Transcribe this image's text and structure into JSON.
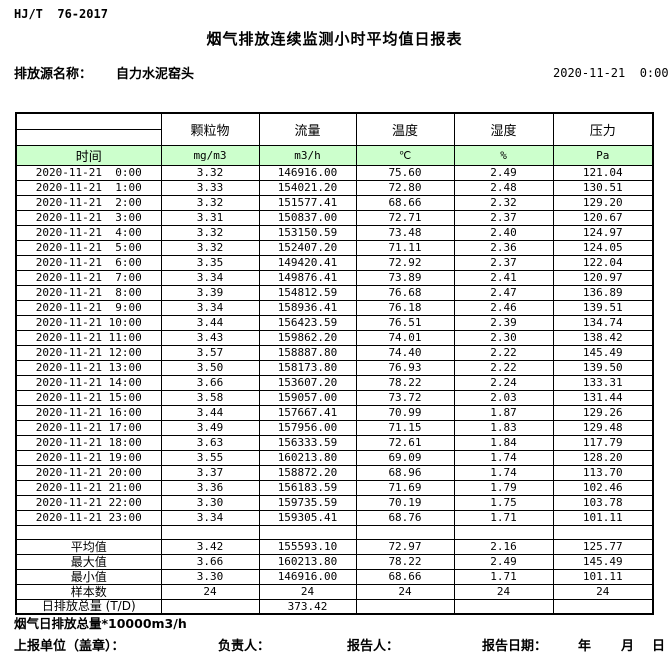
{
  "header": {
    "standard": "HJ/T  76-2017",
    "title": "烟气排放连续监测小时平均值日报表",
    "source_label": "排放源名称：",
    "source_name": "自力水泥窑头",
    "datetime": "2020-11-21  0:00"
  },
  "table": {
    "time_header": "时间",
    "columns": [
      "颗粒物",
      "流量",
      "温度",
      "湿度",
      "压力"
    ],
    "units": [
      "mg/m3",
      "m3/h",
      "℃",
      "%",
      "Pa"
    ],
    "rows": [
      {
        "time": "2020-11-21  0:00",
        "values": [
          "3.32",
          "146916.00",
          "75.60",
          "2.49",
          "121.04"
        ]
      },
      {
        "time": "2020-11-21  1:00",
        "values": [
          "3.33",
          "154021.20",
          "72.80",
          "2.48",
          "130.51"
        ]
      },
      {
        "time": "2020-11-21  2:00",
        "values": [
          "3.32",
          "151577.41",
          "68.66",
          "2.32",
          "129.20"
        ]
      },
      {
        "time": "2020-11-21  3:00",
        "values": [
          "3.31",
          "150837.00",
          "72.71",
          "2.37",
          "120.67"
        ]
      },
      {
        "time": "2020-11-21  4:00",
        "values": [
          "3.32",
          "153150.59",
          "73.48",
          "2.40",
          "124.97"
        ]
      },
      {
        "time": "2020-11-21  5:00",
        "values": [
          "3.32",
          "152407.20",
          "71.11",
          "2.36",
          "124.05"
        ]
      },
      {
        "time": "2020-11-21  6:00",
        "values": [
          "3.35",
          "149420.41",
          "72.92",
          "2.37",
          "122.04"
        ]
      },
      {
        "time": "2020-11-21  7:00",
        "values": [
          "3.34",
          "149876.41",
          "73.89",
          "2.41",
          "120.97"
        ]
      },
      {
        "time": "2020-11-21  8:00",
        "values": [
          "3.39",
          "154812.59",
          "76.68",
          "2.47",
          "136.89"
        ]
      },
      {
        "time": "2020-11-21  9:00",
        "values": [
          "3.34",
          "158936.41",
          "76.18",
          "2.46",
          "139.51"
        ]
      },
      {
        "time": "2020-11-21 10:00",
        "values": [
          "3.44",
          "156423.59",
          "76.51",
          "2.39",
          "134.74"
        ]
      },
      {
        "time": "2020-11-21 11:00",
        "values": [
          "3.43",
          "159862.20",
          "74.01",
          "2.30",
          "138.42"
        ]
      },
      {
        "time": "2020-11-21 12:00",
        "values": [
          "3.57",
          "158887.80",
          "74.40",
          "2.22",
          "145.49"
        ]
      },
      {
        "time": "2020-11-21 13:00",
        "values": [
          "3.50",
          "158173.80",
          "76.93",
          "2.22",
          "139.50"
        ]
      },
      {
        "time": "2020-11-21 14:00",
        "values": [
          "3.66",
          "153607.20",
          "78.22",
          "2.24",
          "133.31"
        ]
      },
      {
        "time": "2020-11-21 15:00",
        "values": [
          "3.58",
          "159057.00",
          "73.72",
          "2.03",
          "131.44"
        ]
      },
      {
        "time": "2020-11-21 16:00",
        "values": [
          "3.44",
          "157667.41",
          "70.99",
          "1.87",
          "129.26"
        ]
      },
      {
        "time": "2020-11-21 17:00",
        "values": [
          "3.49",
          "157956.00",
          "71.15",
          "1.83",
          "129.48"
        ]
      },
      {
        "time": "2020-11-21 18:00",
        "values": [
          "3.63",
          "156333.59",
          "72.61",
          "1.84",
          "117.79"
        ]
      },
      {
        "time": "2020-11-21 19:00",
        "values": [
          "3.55",
          "160213.80",
          "69.09",
          "1.74",
          "128.20"
        ]
      },
      {
        "time": "2020-11-21 20:00",
        "values": [
          "3.37",
          "158872.20",
          "68.96",
          "1.74",
          "113.70"
        ]
      },
      {
        "time": "2020-11-21 21:00",
        "values": [
          "3.36",
          "156183.59",
          "71.69",
          "1.79",
          "102.46"
        ]
      },
      {
        "time": "2020-11-21 22:00",
        "values": [
          "3.30",
          "159735.59",
          "70.19",
          "1.75",
          "103.78"
        ]
      },
      {
        "time": "2020-11-21 23:00",
        "values": [
          "3.34",
          "159305.41",
          "68.76",
          "1.71",
          "101.11"
        ]
      }
    ],
    "summary": [
      {
        "label": "平均值",
        "values": [
          "3.42",
          "155593.10",
          "72.97",
          "2.16",
          "125.77"
        ]
      },
      {
        "label": "最大值",
        "values": [
          "3.66",
          "160213.80",
          "78.22",
          "2.49",
          "145.49"
        ]
      },
      {
        "label": "最小值",
        "values": [
          "3.30",
          "146916.00",
          "68.66",
          "1.71",
          "101.11"
        ]
      },
      {
        "label": "样本数",
        "values": [
          "24",
          "24",
          "24",
          "24",
          "24"
        ]
      },
      {
        "label": "日排放总量 (T/D)",
        "values": [
          "",
          "373.42",
          "",
          "",
          ""
        ]
      }
    ]
  },
  "footer": {
    "note": "烟气日排放总量*10000m3/h",
    "report_unit_label": "上报单位（盖章）：",
    "responsible_label": "负责人：",
    "reporter_label": "报告人：",
    "report_date_label": "报告日期：",
    "year_label": "年",
    "month_label": "月",
    "day_label": "日"
  },
  "colors": {
    "header_green": "#ccffcc",
    "border": "#000000"
  }
}
